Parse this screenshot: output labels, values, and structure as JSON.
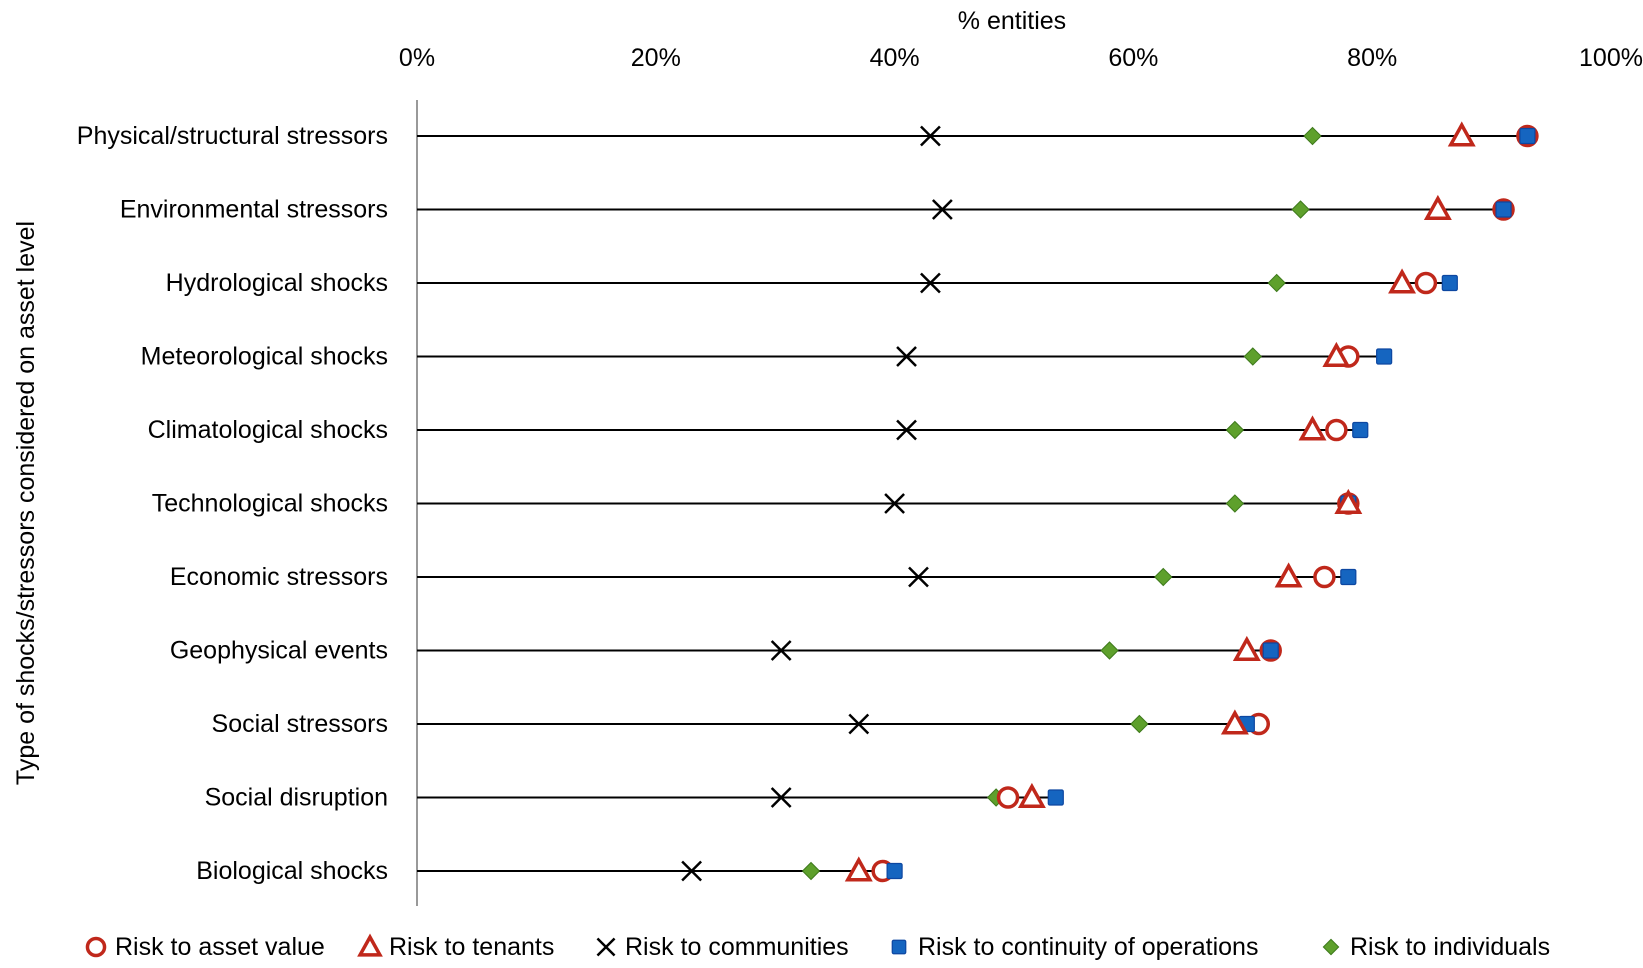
{
  "chart_data": {
    "type": "scatter",
    "xlabel": "% entities",
    "ylabel": "Type of shocks/stressors considered on asset level",
    "xlim": [
      0,
      100
    ],
    "x_ticks": [
      "0%",
      "20%",
      "40%",
      "60%",
      "80%",
      "100%"
    ],
    "x_axis_position": "top",
    "grid": false,
    "legend_position": "bottom",
    "categories": [
      "Physical/structural stressors",
      "Environmental stressors",
      "Hydrological shocks",
      "Meteorological shocks",
      "Climatological shocks",
      "Technological shocks",
      "Economic stressors",
      "Geophysical events",
      "Social stressors",
      "Social disruption",
      "Biological shocks"
    ],
    "series": [
      {
        "name": "Risk to asset value",
        "marker": "circle-open",
        "color": "#C0281B",
        "values": [
          93,
          91,
          84.5,
          78,
          77,
          78,
          76,
          71.5,
          70.5,
          49.5,
          39
        ]
      },
      {
        "name": "Risk to tenants",
        "marker": "triangle-open",
        "color": "#C0281B",
        "values": [
          87.5,
          85.5,
          82.5,
          77,
          75,
          78,
          73,
          69.5,
          68.5,
          51.5,
          37
        ]
      },
      {
        "name": "Risk to communities",
        "marker": "x",
        "color": "#000000",
        "values": [
          43,
          44,
          43,
          41,
          41,
          40,
          42,
          30.5,
          37,
          30.5,
          23
        ]
      },
      {
        "name": "Risk to continuity of operations",
        "marker": "square",
        "color": "#1565C0",
        "values": [
          93,
          91,
          86.5,
          81,
          79,
          78,
          78,
          71.5,
          69.5,
          53.5,
          40
        ]
      },
      {
        "name": "Risk to individuals",
        "marker": "diamond",
        "color": "#5EA02C",
        "values": [
          75,
          74,
          72,
          70,
          68.5,
          68.5,
          62.5,
          58,
          60.5,
          48.5,
          33
        ]
      }
    ]
  }
}
